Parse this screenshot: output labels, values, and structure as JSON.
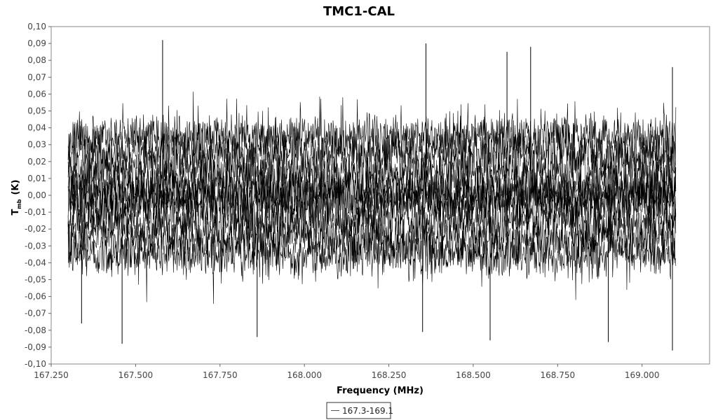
{
  "chart_data": {
    "type": "line",
    "title": "TMC1-CAL",
    "xlabel": "Frequency (MHz)",
    "ylabel_main": "T",
    "ylabel_sub": "mb",
    "ylabel_unit": "(K)",
    "xlim": [
      167.25,
      169.2
    ],
    "ylim": [
      -0.1,
      0.1
    ],
    "x_ticks": [
      167.25,
      167.5,
      167.75,
      168.0,
      168.25,
      168.5,
      168.75,
      169.0
    ],
    "x_tick_labels": [
      "167.250",
      "167.500",
      "167.750",
      "168.000",
      "168.250",
      "168.500",
      "168.750",
      "169.000"
    ],
    "y_ticks": [
      0.1,
      0.09,
      0.08,
      0.07,
      0.06,
      0.05,
      0.04,
      0.03,
      0.02,
      0.01,
      0.0,
      -0.01,
      -0.02,
      -0.03,
      -0.04,
      -0.05,
      -0.06,
      -0.07,
      -0.08,
      -0.09,
      -0.1
    ],
    "y_tick_labels": [
      "0,10",
      "0,09",
      "0,08",
      "0,07",
      "0,06",
      "0,05",
      "0,04",
      "0,03",
      "0,02",
      "0,01",
      "0,00",
      "-0,01",
      "-0,02",
      "-0,03",
      "-0,04",
      "-0,05",
      "-0,06",
      "-0,07",
      "-0,08",
      "-0,09",
      "-0,10"
    ],
    "grid": false,
    "legend_position": "bottom-center",
    "series": [
      {
        "name": "167.3-169.1",
        "x_range": [
          167.3,
          169.1
        ],
        "offsets": [
          -0.035,
          -0.025,
          -0.015,
          -0.005,
          0.0,
          0.005,
          0.015,
          0.025,
          0.035
        ],
        "noise_sigma": 0.007,
        "color": "#000000"
      }
    ],
    "spikes": [
      {
        "x": 167.58,
        "y": 0.092
      },
      {
        "x": 168.36,
        "y": 0.09
      },
      {
        "x": 168.6,
        "y": 0.085
      },
      {
        "x": 168.67,
        "y": 0.088
      },
      {
        "x": 167.46,
        "y": -0.088
      },
      {
        "x": 167.86,
        "y": -0.084
      },
      {
        "x": 168.55,
        "y": -0.086
      },
      {
        "x": 168.9,
        "y": -0.087
      },
      {
        "x": 169.09,
        "y": -0.092
      },
      {
        "x": 167.34,
        "y": -0.076
      },
      {
        "x": 168.35,
        "y": -0.081
      },
      {
        "x": 169.09,
        "y": 0.076
      }
    ]
  }
}
